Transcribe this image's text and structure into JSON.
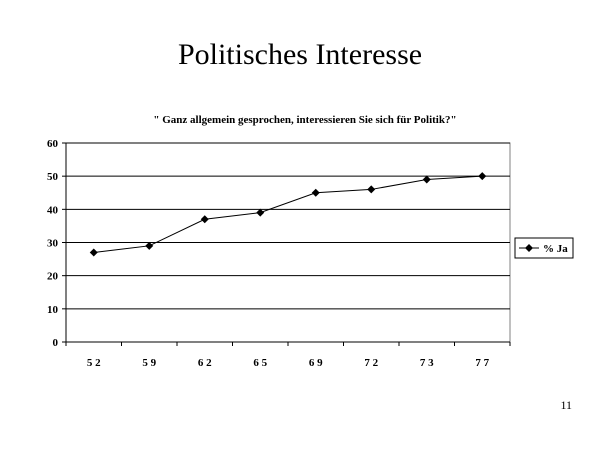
{
  "slide": {
    "title": "Politisches Interesse",
    "page_number": "11"
  },
  "chart_data": {
    "type": "line",
    "title": "\" Ganz allgemein gesprochen, interessieren Sie sich für Politik?\"",
    "xlabel": "",
    "ylabel": "",
    "categories": [
      "5 2",
      "5 9",
      "6 2",
      "6 5",
      "6 9",
      "7 2",
      "7 3",
      "7 7"
    ],
    "series": [
      {
        "name": "% Ja",
        "values": [
          27,
          29,
          37,
          39,
          45,
          46,
          49,
          50
        ]
      }
    ],
    "ylim": [
      0,
      60
    ],
    "yticks": [
      0,
      10,
      20,
      30,
      40,
      50,
      60
    ],
    "grid": true,
    "legend": "right",
    "colors": {
      "line": "#000000",
      "grid": "#000000",
      "background": "#ffffff"
    }
  }
}
